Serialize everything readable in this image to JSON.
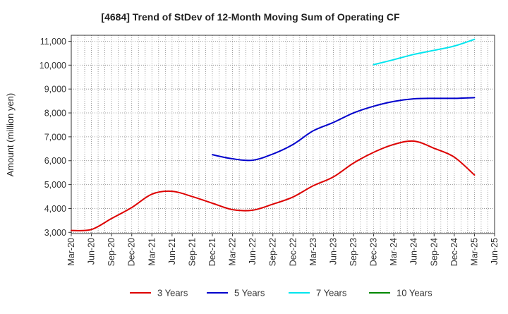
{
  "chart_data": {
    "type": "line",
    "title": "[4684]  Trend of StDev of 12-Month Moving Sum of Operating CF",
    "xlabel": "",
    "ylabel": "Amount (million yen)",
    "ylim": [
      2950,
      11250
    ],
    "yticks": [
      3000,
      4000,
      5000,
      6000,
      7000,
      8000,
      9000,
      10000,
      11000
    ],
    "ytick_labels": [
      "3,000",
      "4,000",
      "5,000",
      "6,000",
      "7,000",
      "8,000",
      "9,000",
      "10,000",
      "11,000"
    ],
    "xtick_labels": [
      "Mar-20",
      "Jun-20",
      "Sep-20",
      "Dec-20",
      "Mar-21",
      "Jun-21",
      "Sep-21",
      "Dec-21",
      "Mar-22",
      "Jun-22",
      "Sep-22",
      "Dec-22",
      "Mar-23",
      "Jun-23",
      "Sep-23",
      "Dec-23",
      "Mar-24",
      "Jun-24",
      "Sep-24",
      "Dec-24",
      "Mar-25",
      "Jun-25"
    ],
    "grid": true,
    "legend_position": "bottom",
    "series": [
      {
        "name": "3 Years",
        "color": "#dd0000",
        "x": [
          "Mar-20",
          "Jun-20",
          "Sep-20",
          "Dec-20",
          "Mar-21",
          "Jun-21",
          "Sep-21",
          "Dec-21",
          "Mar-22",
          "Jun-22",
          "Sep-22",
          "Dec-22",
          "Mar-23",
          "Jun-23",
          "Sep-23",
          "Dec-23",
          "Mar-24",
          "Jun-24",
          "Sep-24",
          "Dec-24",
          "Mar-25"
        ],
        "values": [
          3080,
          3120,
          3580,
          4040,
          4600,
          4720,
          4500,
          4220,
          3950,
          3930,
          4180,
          4480,
          4950,
          5320,
          5900,
          6350,
          6680,
          6820,
          6520,
          6150,
          5400
        ]
      },
      {
        "name": "5 Years",
        "color": "#0000cc",
        "x": [
          "Dec-21",
          "Mar-22",
          "Jun-22",
          "Sep-22",
          "Dec-22",
          "Mar-23",
          "Jun-23",
          "Sep-23",
          "Dec-23",
          "Mar-24",
          "Jun-24",
          "Sep-24",
          "Dec-24",
          "Mar-25"
        ],
        "values": [
          6250,
          6080,
          6020,
          6280,
          6680,
          7250,
          7600,
          8000,
          8280,
          8480,
          8590,
          8610,
          8610,
          8640
        ]
      },
      {
        "name": "7 Years",
        "color": "#00e5ee",
        "x": [
          "Dec-23",
          "Mar-24",
          "Jun-24",
          "Sep-24",
          "Dec-24",
          "Mar-25"
        ],
        "values": [
          10020,
          10230,
          10450,
          10620,
          10800,
          11080
        ]
      },
      {
        "name": "10 Years",
        "color": "#008800",
        "x": [],
        "values": []
      }
    ]
  }
}
